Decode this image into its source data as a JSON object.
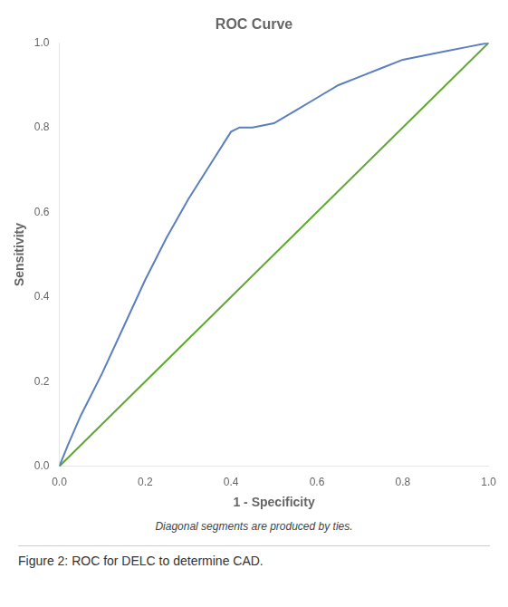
{
  "chart_data": {
    "type": "line",
    "title": "ROC Curve",
    "xlabel": "1 - Specificity",
    "ylabel": "Sensitivity",
    "annotations": [
      "Diagonal segments are produced by ties.",
      "Figure 2: ROC for DELC to determine CAD."
    ],
    "series": [
      {
        "color": "#5B7FBF",
        "x": [
          0.0,
          0.02,
          0.05,
          0.1,
          0.15,
          0.2,
          0.25,
          0.3,
          0.35,
          0.4,
          0.42,
          0.45,
          0.5,
          0.55,
          0.6,
          0.65,
          0.7,
          0.75,
          0.8,
          0.85,
          0.9,
          0.95,
          1.0
        ],
        "values": [
          0.0,
          0.05,
          0.12,
          0.22,
          0.33,
          0.44,
          0.54,
          0.63,
          0.71,
          0.79,
          0.8,
          0.8,
          0.81,
          0.84,
          0.87,
          0.9,
          0.92,
          0.94,
          0.96,
          0.97,
          0.98,
          0.99,
          1.0
        ]
      },
      {
        "color": "#5DA832",
        "x": [
          0.0,
          1.0
        ],
        "values": [
          0.0,
          1.0
        ]
      }
    ],
    "xlim": [
      0.0,
      1.0
    ],
    "ylim": [
      0.0,
      1.0
    ],
    "xticks": [
      {
        "value": 0.0,
        "label": "0.0"
      },
      0.2,
      0.4,
      0.6,
      0.8,
      {
        "value": 1.0,
        "label": "1.0"
      }
    ],
    "yticks": [
      {
        "value": 0.0,
        "label": "0.0"
      },
      0.2,
      0.4,
      0.6,
      0.8,
      {
        "value": 1.0,
        "label": "1.0"
      }
    ],
    "grid": false
  }
}
